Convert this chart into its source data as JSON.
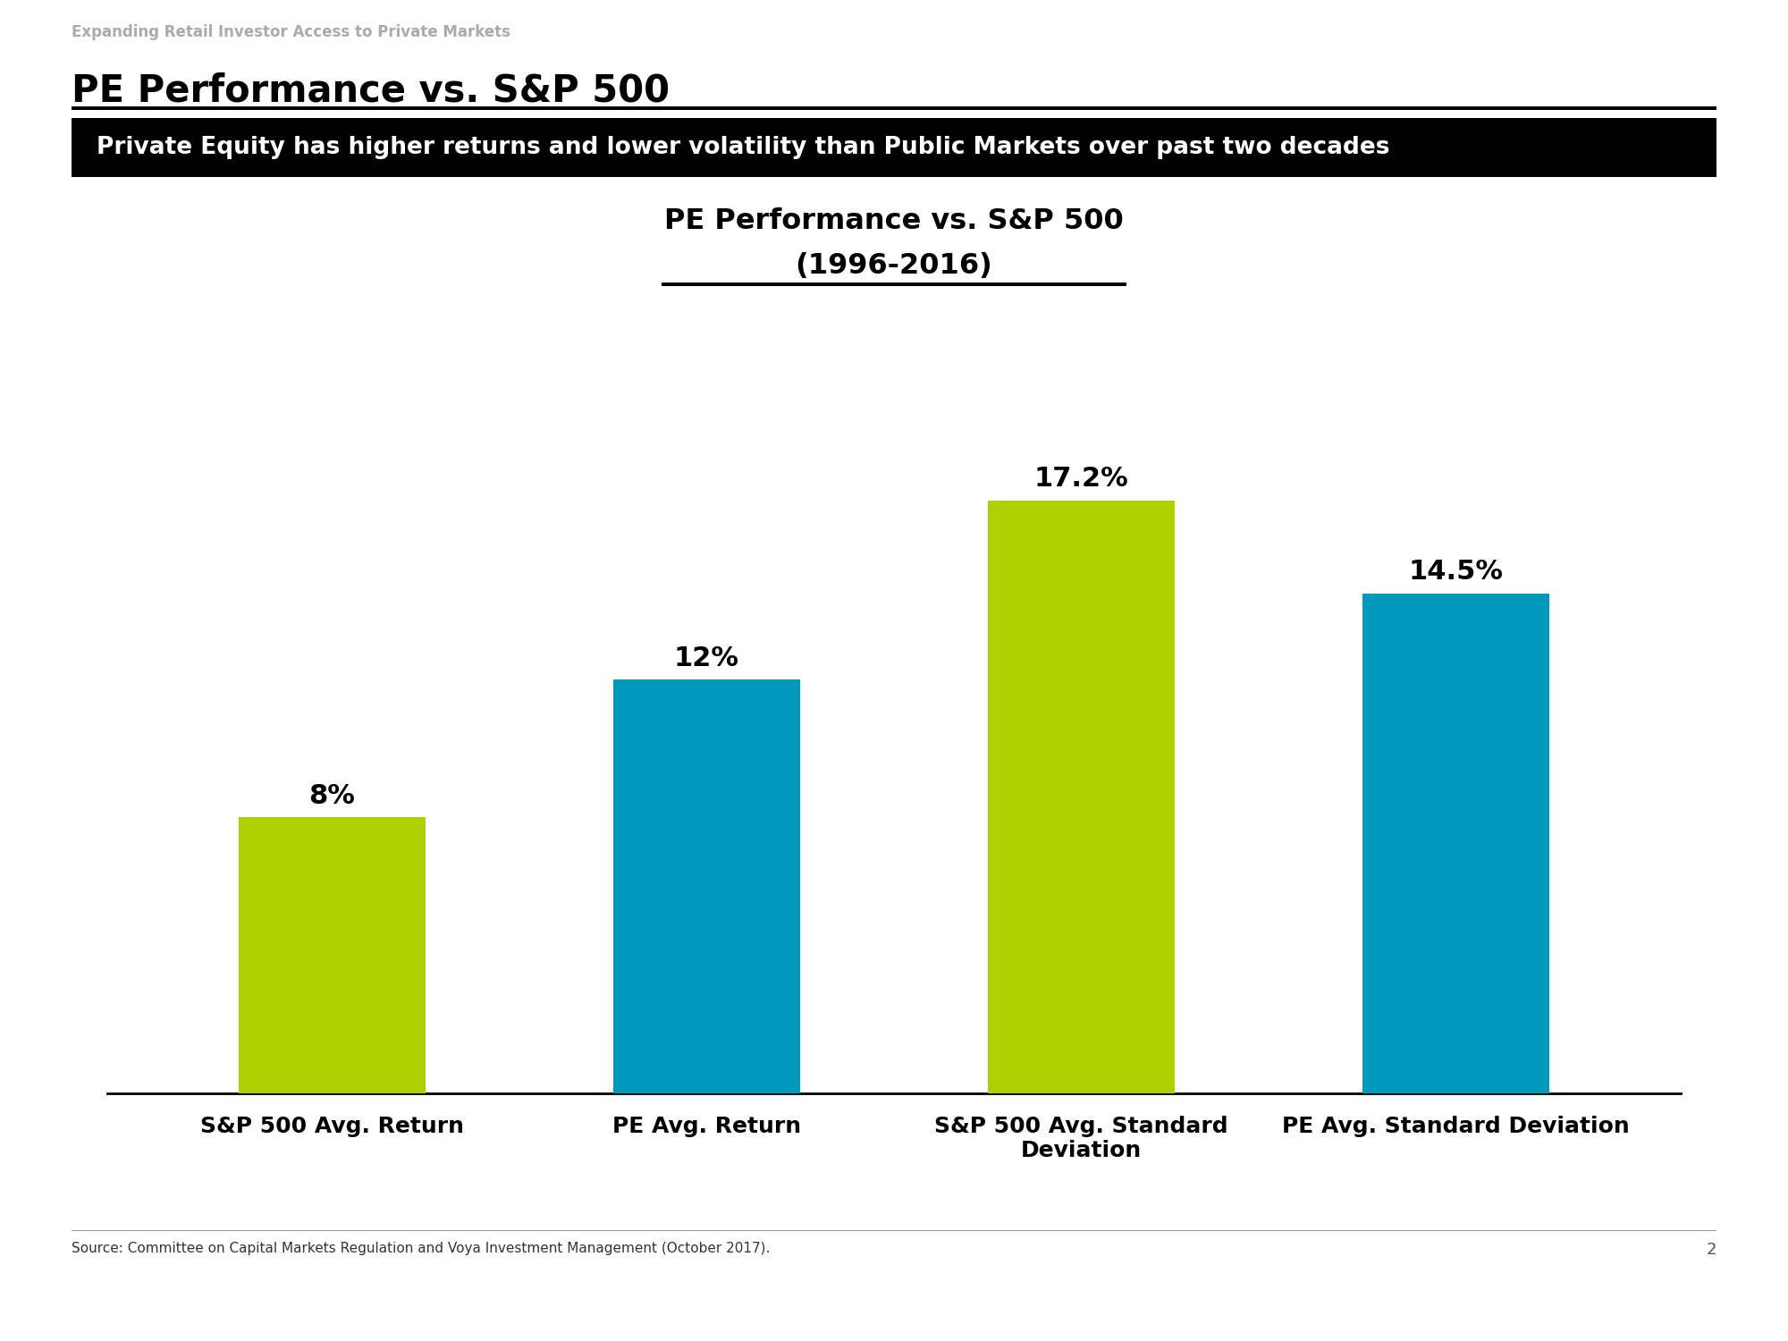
{
  "slide_title_top": "Expanding Retail Investor Access to Private Markets",
  "slide_title": "PE Performance vs. S&P 500",
  "black_banner_text": "Private Equity has higher returns and lower volatility than Public Markets over past two decades",
  "chart_title_line1": "PE Performance vs. S&P 500",
  "chart_title_line2": "(1996-2016)",
  "categories": [
    "S&P 500 Avg. Return",
    "PE Avg. Return",
    "S&P 500 Avg. Standard\nDeviation",
    "PE Avg. Standard Deviation"
  ],
  "values": [
    8,
    12,
    17.2,
    14.5
  ],
  "value_labels": [
    "8%",
    "12%",
    "17.2%",
    "14.5%"
  ],
  "bar_colors": [
    "#aecf00",
    "#0099bb",
    "#aecf00",
    "#0099bb"
  ],
  "source_text": "Source: Committee on Capital Markets Regulation and Voya Investment Management (October 2017).",
  "page_number": "2",
  "background_color": "#ffffff",
  "title_color_top": "#aaaaaa",
  "title_color_main": "#000000",
  "banner_bg_color": "#000000",
  "banner_text_color": "#ffffff",
  "ylim": [
    0,
    22
  ],
  "bar_width": 0.5
}
